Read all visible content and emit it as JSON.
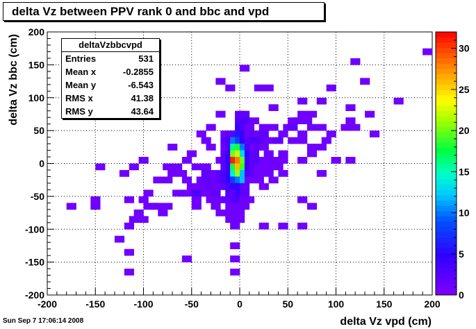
{
  "title": "delta Vz between PPV rank 0 and bbc and vpd",
  "stats": {
    "name": "deltaVzbbcvpd",
    "rows": [
      {
        "key": "Entries",
        "value": "531"
      },
      {
        "key": "Mean x",
        "value": "-0.2855"
      },
      {
        "key": "Mean y",
        "value": "-6.543"
      },
      {
        "key": "RMS x",
        "value": "41.38"
      },
      {
        "key": "RMS y",
        "value": "43.64"
      }
    ]
  },
  "timestamp": "Sun Sep  7 17:06:14 2008",
  "chart_data": {
    "type": "heatmap",
    "title": "delta Vz between PPV rank 0 and bbc and vpd",
    "xlabel": "delta Vz vpd (cm)",
    "ylabel": "delta Vz bbc (cm)",
    "xlim": [
      -200,
      200
    ],
    "ylim": [
      -200,
      200
    ],
    "bin_width": 10,
    "x_ticks": [
      "-200",
      "-150",
      "-100",
      "-50",
      "0",
      "50",
      "100",
      "150",
      "200"
    ],
    "y_ticks": [
      "-200",
      "-150",
      "-100",
      "-50",
      "0",
      "50",
      "100",
      "150",
      "200"
    ],
    "z_ticks": [
      "0",
      "5",
      "10",
      "15",
      "20",
      "25",
      "30"
    ],
    "zlim": [
      0,
      32
    ],
    "grid": true,
    "colorbar": "right",
    "cells": [
      [
        195,
        170,
        1
      ],
      [
        120,
        155,
        1
      ],
      [
        5,
        145,
        1
      ],
      [
        -20,
        125,
        1
      ],
      [
        -10,
        115,
        1
      ],
      [
        20,
        115,
        1
      ],
      [
        30,
        115,
        1
      ],
      [
        95,
        115,
        1
      ],
      [
        130,
        125,
        1
      ],
      [
        65,
        95,
        1
      ],
      [
        85,
        95,
        1
      ],
      [
        165,
        95,
        1
      ],
      [
        35,
        85,
        1
      ],
      [
        115,
        85,
        1
      ],
      [
        -20,
        75,
        1
      ],
      [
        0,
        75,
        2
      ],
      [
        5,
        75,
        2
      ],
      [
        65,
        75,
        1
      ],
      [
        75,
        75,
        1
      ],
      [
        135,
        75,
        1
      ],
      [
        0,
        65,
        3
      ],
      [
        5,
        65,
        3
      ],
      [
        15,
        65,
        1
      ],
      [
        55,
        65,
        1
      ],
      [
        60,
        65,
        1
      ],
      [
        70,
        65,
        1
      ],
      [
        115,
        65,
        1
      ],
      [
        -30,
        55,
        1
      ],
      [
        0,
        55,
        4
      ],
      [
        5,
        55,
        3
      ],
      [
        10,
        55,
        1
      ],
      [
        25,
        55,
        1
      ],
      [
        35,
        55,
        1
      ],
      [
        50,
        55,
        1
      ],
      [
        55,
        55,
        2
      ],
      [
        75,
        55,
        1
      ],
      [
        85,
        55,
        1
      ],
      [
        110,
        55,
        1
      ],
      [
        120,
        55,
        1
      ],
      [
        -40,
        45,
        1
      ],
      [
        -15,
        45,
        1
      ],
      [
        -10,
        45,
        2
      ],
      [
        -5,
        45,
        2
      ],
      [
        0,
        45,
        6
      ],
      [
        5,
        45,
        4
      ],
      [
        10,
        45,
        1
      ],
      [
        15,
        45,
        2
      ],
      [
        20,
        45,
        1
      ],
      [
        25,
        45,
        2
      ],
      [
        45,
        45,
        1
      ],
      [
        65,
        45,
        1
      ],
      [
        95,
        45,
        1
      ],
      [
        140,
        45,
        1
      ],
      [
        -35,
        35,
        1
      ],
      [
        -15,
        35,
        2
      ],
      [
        -10,
        35,
        3
      ],
      [
        -5,
        35,
        10
      ],
      [
        0,
        35,
        8
      ],
      [
        5,
        35,
        5
      ],
      [
        10,
        35,
        2
      ],
      [
        15,
        35,
        3
      ],
      [
        20,
        35,
        3
      ],
      [
        25,
        35,
        2
      ],
      [
        30,
        35,
        1
      ],
      [
        40,
        35,
        2
      ],
      [
        55,
        35,
        1
      ],
      [
        65,
        35,
        1
      ],
      [
        90,
        35,
        1
      ],
      [
        -70,
        25,
        1
      ],
      [
        -30,
        25,
        1
      ],
      [
        -15,
        25,
        1
      ],
      [
        -10,
        25,
        3
      ],
      [
        -5,
        25,
        16
      ],
      [
        0,
        25,
        18
      ],
      [
        5,
        25,
        10
      ],
      [
        10,
        25,
        3
      ],
      [
        15,
        25,
        1
      ],
      [
        20,
        25,
        2
      ],
      [
        25,
        25,
        1
      ],
      [
        75,
        25,
        1
      ],
      [
        85,
        25,
        1
      ],
      [
        -50,
        15,
        1
      ],
      [
        -15,
        15,
        2
      ],
      [
        -10,
        15,
        4
      ],
      [
        -5,
        15,
        20
      ],
      [
        0,
        15,
        22
      ],
      [
        5,
        15,
        13
      ],
      [
        10,
        15,
        5
      ],
      [
        15,
        15,
        2
      ],
      [
        30,
        15,
        1
      ],
      [
        45,
        15,
        1
      ],
      [
        75,
        15,
        1
      ],
      [
        -100,
        5,
        1
      ],
      [
        -55,
        5,
        1
      ],
      [
        -20,
        5,
        1
      ],
      [
        -15,
        5,
        2
      ],
      [
        -10,
        5,
        5
      ],
      [
        -5,
        5,
        31
      ],
      [
        0,
        5,
        28
      ],
      [
        5,
        5,
        20
      ],
      [
        10,
        5,
        4
      ],
      [
        15,
        5,
        2
      ],
      [
        20,
        5,
        3
      ],
      [
        25,
        5,
        1
      ],
      [
        35,
        5,
        1
      ],
      [
        45,
        5,
        1
      ],
      [
        65,
        5,
        1
      ],
      [
        100,
        5,
        1
      ],
      [
        115,
        5,
        1
      ],
      [
        -145,
        -5,
        1
      ],
      [
        -110,
        -5,
        1
      ],
      [
        -75,
        -5,
        1
      ],
      [
        -70,
        -5,
        1
      ],
      [
        -65,
        -5,
        1
      ],
      [
        -45,
        -5,
        1
      ],
      [
        -35,
        -5,
        1
      ],
      [
        -15,
        -5,
        2
      ],
      [
        -10,
        -5,
        4
      ],
      [
        -5,
        -5,
        18
      ],
      [
        0,
        -5,
        26
      ],
      [
        5,
        -5,
        19
      ],
      [
        10,
        -5,
        4
      ],
      [
        15,
        -5,
        2
      ],
      [
        20,
        -5,
        1
      ],
      [
        30,
        -5,
        1
      ],
      [
        40,
        -5,
        1
      ],
      [
        -120,
        -15,
        1
      ],
      [
        -70,
        -15,
        1
      ],
      [
        -60,
        -15,
        1
      ],
      [
        -35,
        -15,
        2
      ],
      [
        -25,
        -15,
        1
      ],
      [
        -20,
        -15,
        2
      ],
      [
        -15,
        -15,
        3
      ],
      [
        -10,
        -15,
        4
      ],
      [
        -5,
        -15,
        14
      ],
      [
        0,
        -15,
        21
      ],
      [
        5,
        -15,
        12
      ],
      [
        10,
        -15,
        3
      ],
      [
        15,
        -15,
        2
      ],
      [
        20,
        -15,
        1
      ],
      [
        30,
        -15,
        1
      ],
      [
        45,
        -15,
        1
      ],
      [
        85,
        -15,
        1
      ],
      [
        -85,
        -25,
        1
      ],
      [
        -75,
        -25,
        1
      ],
      [
        -55,
        -25,
        1
      ],
      [
        -40,
        -25,
        1
      ],
      [
        -35,
        -25,
        2
      ],
      [
        -25,
        -25,
        1
      ],
      [
        -20,
        -25,
        2
      ],
      [
        -15,
        -25,
        3
      ],
      [
        -10,
        -25,
        5
      ],
      [
        -5,
        -25,
        8
      ],
      [
        0,
        -25,
        10
      ],
      [
        5,
        -25,
        12
      ],
      [
        10,
        -25,
        1
      ],
      [
        20,
        -25,
        1
      ],
      [
        35,
        -25,
        1
      ],
      [
        -50,
        -35,
        1
      ],
      [
        -40,
        -35,
        1
      ],
      [
        -30,
        -35,
        2
      ],
      [
        -25,
        -35,
        1
      ],
      [
        -20,
        -35,
        1
      ],
      [
        -15,
        -35,
        2
      ],
      [
        -10,
        -35,
        3
      ],
      [
        -5,
        -35,
        4
      ],
      [
        0,
        -35,
        5
      ],
      [
        5,
        -35,
        2
      ],
      [
        25,
        -35,
        1
      ],
      [
        -95,
        -45,
        1
      ],
      [
        -65,
        -45,
        1
      ],
      [
        -60,
        -45,
        1
      ],
      [
        -55,
        -45,
        1
      ],
      [
        -45,
        -45,
        3
      ],
      [
        -40,
        -45,
        3
      ],
      [
        -35,
        -45,
        1
      ],
      [
        -25,
        -45,
        2
      ],
      [
        -10,
        -45,
        3
      ],
      [
        -5,
        -45,
        2
      ],
      [
        0,
        -45,
        4
      ],
      [
        5,
        -45,
        2
      ],
      [
        -150,
        -55,
        1
      ],
      [
        -115,
        -55,
        1
      ],
      [
        -100,
        -55,
        1
      ],
      [
        -45,
        -55,
        1
      ],
      [
        -30,
        -55,
        1
      ],
      [
        -25,
        -55,
        1
      ],
      [
        -20,
        -55,
        1
      ],
      [
        -15,
        -55,
        2
      ],
      [
        -10,
        -55,
        2
      ],
      [
        -5,
        -55,
        2
      ],
      [
        0,
        -55,
        3
      ],
      [
        5,
        -55,
        1
      ],
      [
        10,
        -55,
        1
      ],
      [
        65,
        -55,
        1
      ],
      [
        -175,
        -65,
        1
      ],
      [
        -150,
        -65,
        1
      ],
      [
        -95,
        -65,
        1
      ],
      [
        -90,
        -65,
        1
      ],
      [
        -85,
        -65,
        1
      ],
      [
        -75,
        -65,
        1
      ],
      [
        -45,
        -65,
        1
      ],
      [
        -25,
        -65,
        1
      ],
      [
        -10,
        -65,
        1
      ],
      [
        -5,
        -65,
        1
      ],
      [
        0,
        -65,
        1
      ],
      [
        5,
        -65,
        1
      ],
      [
        75,
        -65,
        1
      ],
      [
        -105,
        -75,
        1
      ],
      [
        -80,
        -75,
        1
      ],
      [
        -20,
        -75,
        1
      ],
      [
        -10,
        -75,
        1
      ],
      [
        0,
        -75,
        1
      ],
      [
        -110,
        -85,
        1
      ],
      [
        -100,
        -85,
        1
      ],
      [
        -10,
        -85,
        1
      ],
      [
        -5,
        -85,
        1
      ],
      [
        0,
        -85,
        1
      ],
      [
        -115,
        -95,
        1
      ],
      [
        -5,
        -95,
        1
      ],
      [
        25,
        -95,
        1
      ],
      [
        45,
        -95,
        1
      ],
      [
        65,
        -95,
        1
      ],
      [
        -125,
        -115,
        1
      ],
      [
        -5,
        -125,
        1
      ],
      [
        -115,
        -135,
        1
      ],
      [
        -55,
        -145,
        1
      ],
      [
        -5,
        -145,
        1
      ],
      [
        -115,
        -165,
        1
      ],
      [
        -5,
        -165,
        1
      ]
    ]
  }
}
